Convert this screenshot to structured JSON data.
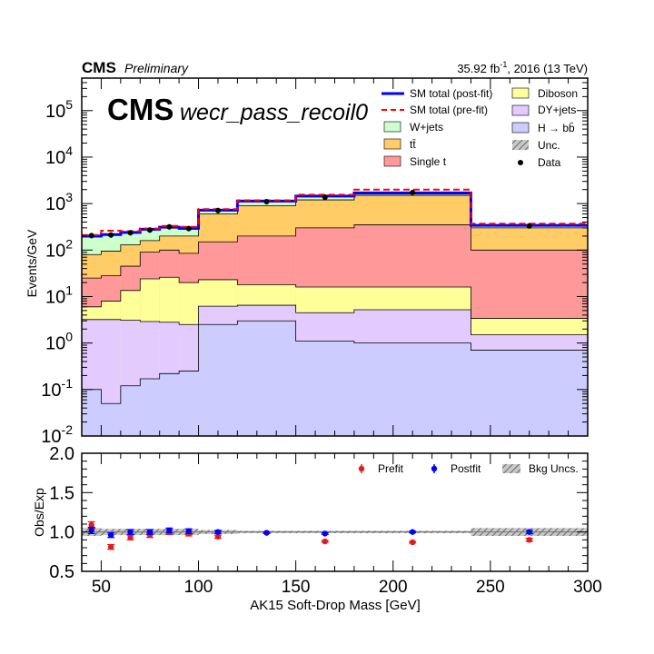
{
  "header": {
    "cms": "CMS",
    "preliminary": "Preliminary",
    "lumi": "35.92 fb",
    "lumi_sup": "-1",
    "lumi_rest": ", 2016 (13 TeV)",
    "big_cms": "CMS",
    "region": "wecr_pass_recoil0"
  },
  "chart_data": [
    {
      "type": "area",
      "panel": "main",
      "ylabel": "Events/GeV",
      "yscale": "log",
      "ylim": [
        0.01,
        500000
      ],
      "xlim": [
        40,
        300
      ],
      "yticks": [
        {
          "v": 0.01,
          "b": "10",
          "e": "-2"
        },
        {
          "v": 0.1,
          "b": "10",
          "e": "-1"
        },
        {
          "v": 1,
          "b": "10",
          "e": "0"
        },
        {
          "v": 10,
          "b": "10",
          "e": "1"
        },
        {
          "v": 100,
          "b": "10",
          "e": "2"
        },
        {
          "v": 1000,
          "b": "10",
          "e": "3"
        },
        {
          "v": 10000,
          "b": "10",
          "e": "4"
        },
        {
          "v": 100000,
          "b": "10",
          "e": "5"
        }
      ],
      "bin_edges": [
        40,
        50,
        60,
        70,
        80,
        90,
        100,
        120,
        150,
        180,
        240,
        300
      ],
      "stack_cumulative": [
        {
          "name": "H → bb̄",
          "color": "#ccccff",
          "values": [
            0.1,
            0.05,
            0.12,
            0.17,
            0.22,
            0.25,
            2.5,
            3.0,
            1.1,
            1.0,
            0.7
          ]
        },
        {
          "name": "DY+jets",
          "color": "#e3cbff",
          "values": [
            3.2,
            3.2,
            3.1,
            2.9,
            2.8,
            2.5,
            6.2,
            6.5,
            4.5,
            5.2,
            1.5
          ]
        },
        {
          "name": "Diboson",
          "color": "#ffff99",
          "values": [
            6.0,
            8.0,
            13.5,
            24.0,
            26.0,
            20.0,
            23.0,
            18.0,
            16.0,
            16.0,
            3.4
          ]
        },
        {
          "name": "Single t",
          "color": "#ff9999",
          "values": [
            25,
            28,
            45,
            90,
            100,
            85,
            150,
            200,
            300,
            350,
            100
          ]
        },
        {
          "name": "tt̄",
          "color": "#ffcc66",
          "values": [
            80,
            95,
            130,
            160,
            200,
            200,
            600,
            900,
            1200,
            1500,
            300
          ]
        },
        {
          "name": "W+jets",
          "color": "#ccffcc",
          "values": [
            190,
            210,
            230,
            270,
            300,
            280,
            700,
            1100,
            1400,
            1600,
            330
          ]
        }
      ],
      "sm_postfit": {
        "name": "SM total (post-fit)",
        "color": "#0000ff",
        "values": [
          200,
          215,
          240,
          280,
          310,
          295,
          720,
          1130,
          1450,
          1700,
          340
        ]
      },
      "sm_prefit": {
        "name": "SM total (pre-fit)",
        "color": "#ff0000",
        "values": [
          210,
          260,
          255,
          290,
          330,
          315,
          760,
          1180,
          1550,
          2000,
          370
        ]
      },
      "data": {
        "name": "Data",
        "x": [
          45,
          55,
          65,
          75,
          85,
          95,
          110,
          135,
          165,
          210,
          270
        ],
        "y": [
          205,
          210,
          235,
          270,
          315,
          290,
          710,
          1100,
          1370,
          1730,
          330
        ]
      },
      "unc_label": "Unc.",
      "legend_position": "top-right"
    },
    {
      "type": "scatter",
      "panel": "ratio",
      "xlabel": "AK15 Soft-Drop Mass [GeV]",
      "ylabel": "Obs/Exp",
      "ylim": [
        0.5,
        2.0
      ],
      "xlim": [
        40,
        300
      ],
      "yticks": [
        "0.5",
        "1.0",
        "1.5",
        "2.0"
      ],
      "xticks": [
        "50",
        "100",
        "150",
        "200",
        "250",
        "300"
      ],
      "x": [
        45,
        55,
        65,
        75,
        85,
        95,
        110,
        135,
        165,
        210,
        270
      ],
      "series": [
        {
          "name": "Prefit",
          "color": "#e41a1c",
          "values": [
            1.09,
            0.81,
            0.93,
            0.96,
            1.0,
            0.98,
            0.94,
            0.99,
            0.88,
            0.87,
            0.9
          ],
          "err": [
            0.04,
            0.03,
            0.03,
            0.03,
            0.03,
            0.03,
            0.02,
            0.01,
            0.01,
            0.01,
            0.02
          ]
        },
        {
          "name": "Postfit",
          "color": "#0000ff",
          "values": [
            1.02,
            0.96,
            1.0,
            1.0,
            1.02,
            1.01,
            1.0,
            0.99,
            0.98,
            1.0,
            1.0
          ],
          "err": [
            0.04,
            0.03,
            0.03,
            0.03,
            0.03,
            0.03,
            0.02,
            0.01,
            0.01,
            0.01,
            0.02
          ]
        }
      ],
      "bkg_unc": {
        "name": "Bkg Uncs.",
        "values": [
          0.05,
          0.04,
          0.04,
          0.04,
          0.04,
          0.04,
          0.025,
          0.015,
          0.015,
          0.015,
          0.05
        ]
      },
      "legend_position": "top-right"
    }
  ]
}
